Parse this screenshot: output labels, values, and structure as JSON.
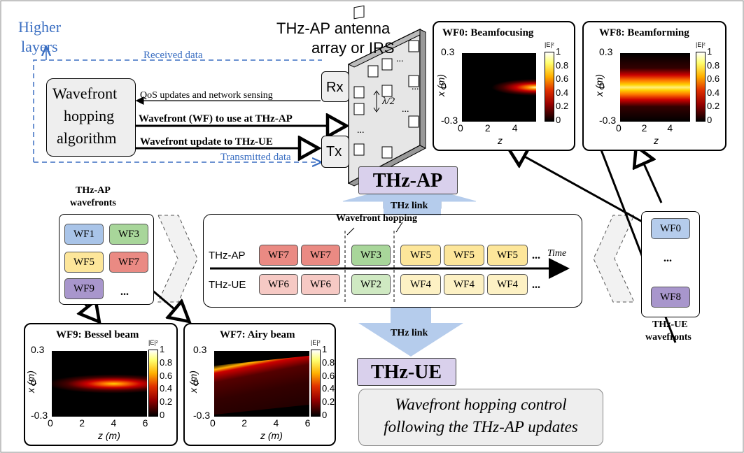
{
  "higher_layers": [
    "Higher",
    "layers"
  ],
  "antenna_title": [
    "THz-AP antenna",
    "array or IRS"
  ],
  "received_data": "Received data",
  "transmitted_data": "Transmitted data",
  "algorithm_label": [
    "Wavefront",
    "hopping",
    "algorithm"
  ],
  "qos_text": "QoS updates and network sensing",
  "wf_use_text": "Wavefront (WF) to use at THz-AP",
  "wf_update_text": "Wavefront update to THz-UE",
  "rx": "Rx",
  "tx": "Tx",
  "lambda": "λ/2",
  "ellipsis": "...",
  "thz_ap": "THz-AP",
  "thz_ue": "THz-UE",
  "thz_link": "THz link",
  "ap_wavefronts_title": [
    "THz-AP",
    "wavefronts"
  ],
  "ue_wavefronts_title": [
    "THz-UE",
    "wavefronts"
  ],
  "ap_wavefronts": [
    "WF1",
    "WF3",
    "WF5",
    "WF7",
    "WF9",
    "..."
  ],
  "ue_wavefronts": [
    "WF0",
    "...",
    "WF8"
  ],
  "hopping_title": "Wavefront hopping",
  "row_ap_label": "THz-AP",
  "row_ue_label": "THz-UE",
  "time_label": "Time",
  "row_ap": [
    "WF7",
    "WF7",
    "WF3",
    "WF5",
    "WF5",
    "WF5",
    "..."
  ],
  "row_ue": [
    "WF6",
    "WF6",
    "WF2",
    "WF4",
    "WF4",
    "WF4",
    "..."
  ],
  "control_text": [
    "Wavefront hopping control",
    "following the THz-AP updates"
  ],
  "panels": {
    "wf0": {
      "title": "WF0: Beamfocusing",
      "ylabel": "x (m)",
      "xlabel": "z",
      "yticks": [
        "0.3",
        "0",
        "-0.3"
      ],
      "xticks": [
        "0",
        "2",
        "4"
      ],
      "cbar_label": "|E|²",
      "cbar_ticks": [
        "1",
        "0.8",
        "0.6",
        "0.4",
        "0.2",
        "0"
      ]
    },
    "wf8": {
      "title": "WF8: Beamforming",
      "ylabel": "x (m)",
      "xlabel": "z",
      "yticks": [
        "0.3",
        "0",
        "-0.3"
      ],
      "xticks": [
        "0",
        "2",
        "4"
      ],
      "cbar_label": "|E|²",
      "cbar_ticks": [
        "1",
        "0.8",
        "0.6",
        "0.4",
        "0.2",
        "0"
      ]
    },
    "wf9": {
      "title": "WF9: Bessel beam",
      "ylabel": "x (m)",
      "xlabel": "z (m)",
      "yticks": [
        "0.3",
        "0",
        "-0.3"
      ],
      "xticks": [
        "0",
        "2",
        "4",
        "6"
      ],
      "cbar_label": "|E|²",
      "cbar_ticks": [
        "1",
        "0.8",
        "0.6",
        "0.4",
        "0.2",
        "0"
      ]
    },
    "wf7": {
      "title": "WF7: Airy beam",
      "ylabel": "x (m)",
      "xlabel": "z (m)",
      "yticks": [
        "0.3",
        "0",
        "-0.3"
      ],
      "xticks": [
        "0",
        "2",
        "4",
        "6"
      ],
      "cbar_label": "|E|²",
      "cbar_ticks": [
        "1",
        "0.8",
        "0.6",
        "0.4",
        "0.2",
        "0"
      ]
    }
  },
  "colors": {
    "wf_blue": "#a9c4e8",
    "wf_green": "#a8d69a",
    "wf_yellow": "#fde69a",
    "wf_red": "#ea8a83",
    "wf_purple": "#a896cc",
    "wf_pink": "#f6c9c4",
    "wf_lightgreen": "#cfe9c2",
    "wf_lightyellow": "#fdf1c4",
    "label_purple": "#d9d0ec",
    "link_blue": "#b5ccec",
    "blue_text": "#3b6fc2"
  }
}
